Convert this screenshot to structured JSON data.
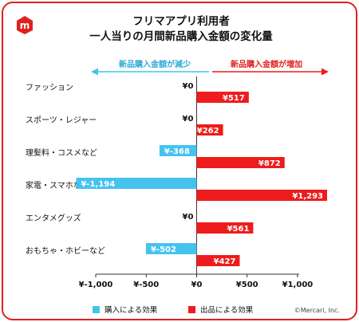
{
  "title_lines": [
    "フリマアプリ利用者",
    "一人当りの月間新品購入金額の変化量"
  ],
  "arrows": {
    "left_label": "新品購入金額が減少",
    "right_label": "新品購入金額が増加"
  },
  "legend": [
    {
      "label": "購入による効果",
      "color": "#45c3ee"
    },
    {
      "label": "出品による効果",
      "color": "#ee1c1c"
    }
  ],
  "copyright": "©Mercari, Inc.",
  "colors": {
    "accent": "#e02020",
    "buy": "#45c3ee",
    "sell": "#ee1c1c"
  },
  "chart_data": {
    "type": "bar",
    "orientation": "horizontal",
    "xlim": [
      -1000,
      1293
    ],
    "x_ticks": [
      {
        "value": -1000,
        "label": "¥-1,000"
      },
      {
        "value": -500,
        "label": "¥-500"
      },
      {
        "value": 0,
        "label": "¥0"
      },
      {
        "value": 500,
        "label": "¥500"
      },
      {
        "value": 1000,
        "label": "¥1,000"
      }
    ],
    "categories": [
      "ファッション",
      "スポーツ・レジャー",
      "理髪料・コスメなど",
      "家電・スマホなど",
      "エンタメグッズ",
      "おもちゃ・ホビーなど"
    ],
    "series": [
      {
        "name": "購入による効果",
        "values": [
          0,
          0,
          -368,
          -1194,
          0,
          -502
        ],
        "labels": [
          "¥0",
          "¥0",
          "¥-368",
          "¥-1,194",
          "¥0",
          "¥-502"
        ]
      },
      {
        "name": "出品による効果",
        "values": [
          517,
          262,
          872,
          1293,
          561,
          427
        ],
        "labels": [
          "¥517",
          "¥262",
          "¥872",
          "¥1,293",
          "¥561",
          "¥427"
        ]
      }
    ]
  }
}
